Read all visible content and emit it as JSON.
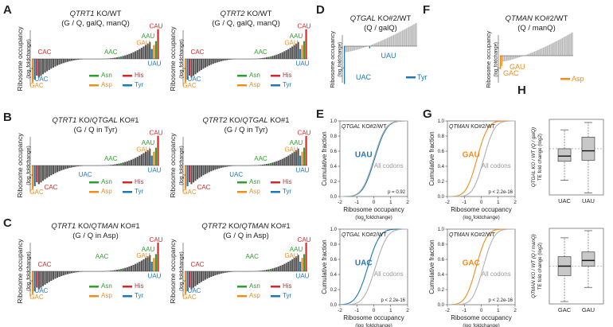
{
  "colors": {
    "asn": "#2ca02c",
    "asp": "#f28c1c",
    "his": "#d62728",
    "tyr": "#1f77b4",
    "bar_dark": "#555555",
    "bar_light": "#b8b8b8",
    "cdf_all": "#b0b0b0"
  },
  "panels": {
    "A": {
      "letter": "A"
    },
    "B": {
      "letter": "B"
    },
    "C": {
      "letter": "C"
    },
    "D": {
      "letter": "D"
    },
    "E": {
      "letter": "E"
    },
    "F": {
      "letter": "F"
    },
    "G": {
      "letter": "G"
    },
    "H": {
      "letter": "H"
    }
  },
  "common": {
    "ribo_occ": "Ribosome occupancy",
    "log2fc_unit": "(log",
    "log2fc_sub": "2",
    "log2fc_end": "foldchange)",
    "cum_frac": "Cumulative fraction",
    "all_codons": "All codons"
  },
  "legend": {
    "asn": "Asn",
    "his": "His",
    "asp": "Asp",
    "tyr": "Tyr"
  },
  "chart_data": [
    {
      "id": "A1",
      "type": "bar",
      "title_gene": "QTRT1",
      "title_rest": " KO/WT",
      "subtitle": "(G / Q, galQ, manQ)",
      "labels": {
        "CAU": "CAU",
        "AAU": "AAU",
        "GAU": "GAU",
        "UAU": "UAU",
        "AAC": "AAC",
        "CAC": "CAC",
        "UAC": "UAC",
        "GAC": "GAC"
      }
    },
    {
      "id": "A2",
      "type": "bar",
      "title_gene": "QTRT2",
      "title_rest": " KO/WT",
      "subtitle": "(G / Q, galQ, manQ)",
      "labels": {
        "CAU": "CAU",
        "AAU": "AAU",
        "GAU": "GAU",
        "UAU": "UAU",
        "AAC": "AAC",
        "CAC": "CAC",
        "UAC": "UAC",
        "GAC": "GAC"
      }
    },
    {
      "id": "B1",
      "type": "bar",
      "title_gene": "QTRT1",
      "title_mid": " KO/",
      "title_gene2": "QTGAL",
      "title_rest": " KO#1",
      "subtitle": "(G / Q in Tyr)",
      "labels": {
        "CAU": "CAU",
        "AAU": "AAU",
        "GAU": "GAU",
        "UAU": "UAU",
        "AAC": "AAC",
        "CAC": "CAC",
        "UAC": "UAC",
        "GAC": "GAC"
      }
    },
    {
      "id": "B2",
      "type": "bar",
      "title_gene": "QTRT2",
      "title_mid": " KO/",
      "title_gene2": "QTGAL",
      "title_rest": " KO#1",
      "subtitle": "(G / Q in Tyr)",
      "labels": {
        "CAU": "CAU",
        "AAU": "AAU",
        "GAU": "GAU",
        "UAU": "UAU",
        "AAC": "AAC",
        "CAC": "CAC",
        "UAC": "UAC",
        "GAC": "GAC"
      }
    },
    {
      "id": "C1",
      "type": "bar",
      "title_gene": "QTRT1",
      "title_mid": " KO/",
      "title_gene2": "QTMAN",
      "title_rest": " KO#1",
      "subtitle": "(G / Q in Asp)",
      "labels": {
        "CAU": "CAU",
        "AAU": "AAU",
        "GAU": "GAU",
        "UAU": "UAU",
        "AAC": "AAC",
        "CAC": "CAC",
        "UAC": "UAC",
        "GAC": "GAC"
      }
    },
    {
      "id": "C2",
      "type": "bar",
      "title_gene": "QTRT2",
      "title_mid": " KO/",
      "title_gene2": "QTMAN",
      "title_rest": " KO#1",
      "subtitle": "(G / Q in Asp)",
      "labels": {
        "CAU": "CAU",
        "AAU": "AAU",
        "GAU": "GAU",
        "UAU": "UAU",
        "AAC": "AAC",
        "CAC": "CAC",
        "UAC": "UAC",
        "GAC": "GAC"
      }
    },
    {
      "id": "D",
      "type": "bar",
      "title_gene": "QTGAL",
      "title_rest": " KO#2/WT",
      "subtitle": "(Q / galQ)",
      "labels": {
        "UAU": "UAU",
        "UAC": "UAC"
      },
      "legend": "Tyr"
    },
    {
      "id": "F",
      "type": "bar",
      "title_gene": "QTMAN",
      "title_rest": " KO#2/WT",
      "subtitle": "(Q / manQ)",
      "labels": {
        "GAU": "GAU",
        "GAC": "GAC"
      },
      "legend": "Asp"
    },
    {
      "id": "E1",
      "type": "line",
      "header": "QTGAL",
      "header_rest": " KO#2/WT",
      "codon": "UAU",
      "pvalue": "p = 0.92",
      "x_ticks": [
        "-2",
        "-1",
        "0",
        "1",
        "2"
      ],
      "y_ticks": [
        "0.0",
        "0.2",
        "0.4",
        "0.6",
        "0.8",
        "1.0"
      ],
      "xlim": [
        -2,
        2
      ],
      "ylim": [
        0,
        1
      ],
      "series": [
        {
          "name": "UAU",
          "mu": 0.05,
          "s": 0.55
        },
        {
          "name": "All codons",
          "mu": 0.0,
          "s": 0.55
        }
      ]
    },
    {
      "id": "E2",
      "type": "line",
      "header": "QTGAL",
      "header_rest": " KO#2/WT",
      "codon": "UAC",
      "pvalue": "p < 2.2e-16",
      "x_ticks": [
        "-2",
        "-1",
        "0",
        "1",
        "2"
      ],
      "y_ticks": [
        "0.0",
        "0.2",
        "0.4",
        "0.6",
        "0.8",
        "1.0"
      ],
      "xlim": [
        -2,
        2
      ],
      "ylim": [
        0,
        1
      ],
      "series": [
        {
          "name": "UAC",
          "mu": -0.35,
          "s": 0.55
        },
        {
          "name": "All codons",
          "mu": 0.1,
          "s": 0.55
        }
      ]
    },
    {
      "id": "G1",
      "type": "line",
      "header": "QTMAN",
      "header_rest": " KO#2/WT",
      "codon": "GAU",
      "pvalue": "p < 2.2e-16",
      "x_ticks": [
        "-2",
        "-1",
        "0",
        "1",
        "2"
      ],
      "y_ticks": [
        "0.0",
        "0.2",
        "0.4",
        "0.6",
        "0.8",
        "1.0"
      ],
      "xlim": [
        -2,
        2
      ],
      "ylim": [
        0,
        1
      ],
      "series": [
        {
          "name": "GAU",
          "mu": -0.25,
          "s": 0.5
        },
        {
          "name": "All codons",
          "mu": 0.15,
          "s": 0.5
        }
      ]
    },
    {
      "id": "G2",
      "type": "line",
      "header": "QTMAN",
      "header_rest": " KO#2/WT",
      "codon": "GAC",
      "pvalue": "p < 2.2e-16",
      "x_ticks": [
        "-2",
        "-1",
        "0",
        "1",
        "2"
      ],
      "y_ticks": [
        "0.0",
        "0.2",
        "0.4",
        "0.6",
        "0.8",
        "1.0"
      ],
      "xlim": [
        -2,
        2
      ],
      "ylim": [
        0,
        1
      ],
      "series": [
        {
          "name": "GAC",
          "mu": -0.3,
          "s": 0.5
        },
        {
          "name": "All codons",
          "mu": 0.12,
          "s": 0.5
        }
      ]
    },
    {
      "id": "H1",
      "type": "box",
      "ylabel1": "QTGAL KO / WT (Q / galQ)",
      "ylabel2": "TE fold change (log2)",
      "categories": [
        "UAC",
        "UAU"
      ],
      "boxes": [
        {
          "min": -1.5,
          "q1": -0.6,
          "med": -0.35,
          "q3": 0.0,
          "max": 0.9
        },
        {
          "min": -2.1,
          "q1": -0.55,
          "med": -0.1,
          "q3": 0.55,
          "max": 1.25
        }
      ],
      "ylim": [
        -2.2,
        1.4
      ]
    },
    {
      "id": "H2",
      "type": "box",
      "ylabel1": "QTMAN KO / WT (Q / manQ)",
      "ylabel2": "TE fold change (log2)",
      "categories": [
        "GAC",
        "GAU"
      ],
      "boxes": [
        {
          "min": -0.75,
          "q1": -0.2,
          "med": 0.0,
          "q3": 0.2,
          "max": 0.6
        },
        {
          "min": -0.45,
          "q1": 0.0,
          "med": 0.12,
          "q3": 0.3,
          "max": 0.75
        }
      ],
      "ylim": [
        -0.8,
        0.8
      ]
    }
  ]
}
